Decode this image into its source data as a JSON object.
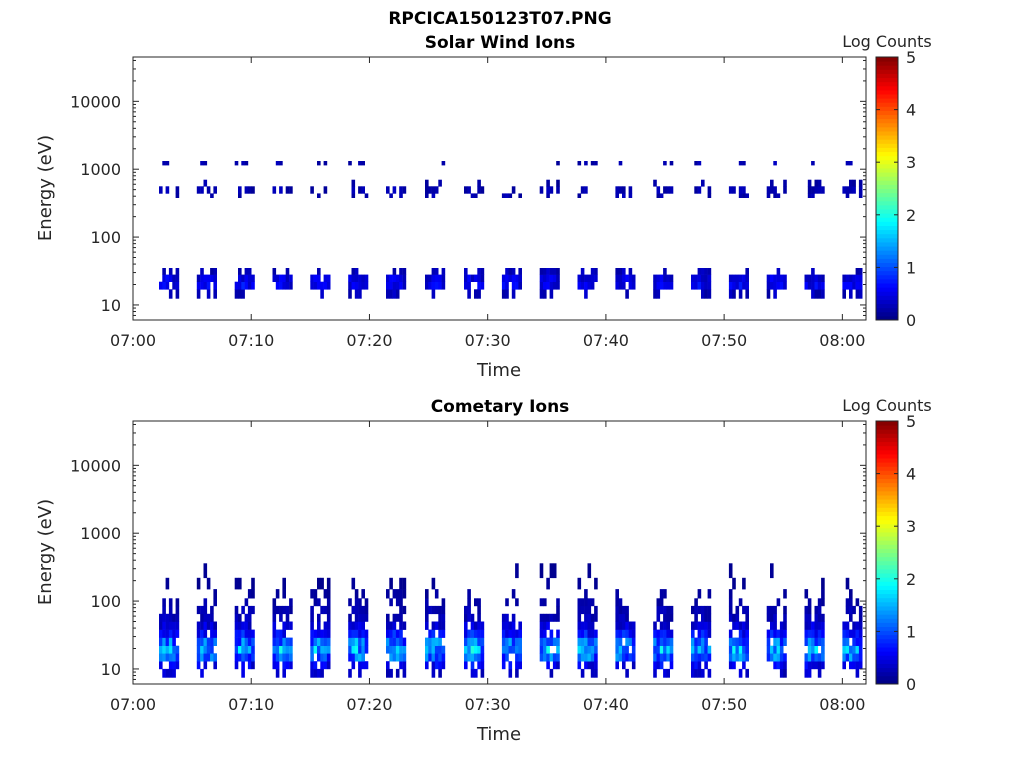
{
  "figure_title": "RPCICA150123T07.PNG",
  "chart_data": [
    {
      "type": "heatmap",
      "title": "Solar Wind Ions",
      "xlabel": "Time",
      "ylabel": "Energy (eV)",
      "x_ticks": [
        "07:00",
        "07:10",
        "07:20",
        "07:30",
        "07:40",
        "07:50",
        "08:00"
      ],
      "x_range_minutes": [
        0,
        62
      ],
      "y_scale": "log",
      "y_range": [
        6,
        45000
      ],
      "y_ticks": [
        "10",
        "100",
        "1000",
        "10000"
      ],
      "colorbar": {
        "label": "Log Counts",
        "range": [
          0,
          5
        ],
        "ticks": [
          "0",
          "1",
          "2",
          "3",
          "4",
          "5"
        ]
      },
      "grid": false,
      "scan_start_minutes": [
        2.2,
        5.4,
        8.6,
        11.8,
        15.0,
        18.2,
        21.4,
        24.7,
        28.0,
        31.2,
        34.4,
        37.6,
        40.8,
        44.0,
        47.2,
        50.4,
        53.6,
        56.8,
        60.0
      ],
      "bands": [
        {
          "e_low": 12.5,
          "e_high": 17,
          "level": 0.3,
          "coverage": 0.5
        },
        {
          "e_low": 17,
          "e_high": 22,
          "level": 0.6,
          "coverage": 0.95
        },
        {
          "e_low": 22,
          "e_high": 28,
          "level": 0.5,
          "coverage": 0.95
        },
        {
          "e_low": 28,
          "e_high": 35,
          "level": 0.3,
          "coverage": 0.4
        },
        {
          "e_low": 380,
          "e_high": 440,
          "level": 0.25,
          "coverage": 0.35
        },
        {
          "e_low": 440,
          "e_high": 560,
          "level": 0.25,
          "coverage": 0.6
        },
        {
          "e_low": 560,
          "e_high": 700,
          "level": 0.2,
          "coverage": 0.15
        },
        {
          "e_low": 1150,
          "e_high": 1320,
          "level": 0.25,
          "coverage": 0.35
        }
      ]
    },
    {
      "type": "heatmap",
      "title": "Cometary Ions",
      "xlabel": "Time",
      "ylabel": "Energy (eV)",
      "x_ticks": [
        "07:00",
        "07:10",
        "07:20",
        "07:30",
        "07:40",
        "07:50",
        "08:00"
      ],
      "x_range_minutes": [
        0,
        62
      ],
      "y_scale": "log",
      "y_range": [
        6,
        45000
      ],
      "y_ticks": [
        "10",
        "100",
        "1000",
        "10000"
      ],
      "colorbar": {
        "label": "Log Counts",
        "range": [
          0,
          5
        ],
        "ticks": [
          "0",
          "1",
          "2",
          "3",
          "4",
          "5"
        ]
      },
      "grid": false,
      "scan_start_minutes": [
        2.2,
        5.4,
        8.6,
        11.8,
        15.0,
        18.2,
        21.4,
        24.7,
        28.0,
        31.2,
        34.4,
        37.6,
        40.8,
        44.0,
        47.2,
        50.4,
        53.6,
        56.8,
        60.0
      ],
      "bands": [
        {
          "e_low": 7.5,
          "e_high": 10,
          "level": 0.4,
          "coverage": 0.35
        },
        {
          "e_low": 10,
          "e_high": 13,
          "level": 0.6,
          "coverage": 0.7
        },
        {
          "e_low": 13,
          "e_high": 17,
          "level": 1.2,
          "coverage": 0.95
        },
        {
          "e_low": 17,
          "e_high": 22,
          "level": 1.5,
          "coverage": 0.95
        },
        {
          "e_low": 22,
          "e_high": 29,
          "level": 1.2,
          "coverage": 0.95
        },
        {
          "e_low": 29,
          "e_high": 38,
          "level": 0.7,
          "coverage": 0.9
        },
        {
          "e_low": 38,
          "e_high": 50,
          "level": 0.45,
          "coverage": 0.85
        },
        {
          "e_low": 50,
          "e_high": 65,
          "level": 0.3,
          "coverage": 0.7
        },
        {
          "e_low": 65,
          "e_high": 85,
          "level": 0.25,
          "coverage": 0.6
        },
        {
          "e_low": 85,
          "e_high": 110,
          "level": 0.2,
          "coverage": 0.45
        },
        {
          "e_low": 110,
          "e_high": 150,
          "level": 0.15,
          "coverage": 0.25
        },
        {
          "e_low": 150,
          "e_high": 220,
          "level": 0.1,
          "coverage": 0.15
        },
        {
          "e_low": 220,
          "e_high": 360,
          "level": 0.1,
          "coverage": 0.07
        }
      ]
    }
  ]
}
